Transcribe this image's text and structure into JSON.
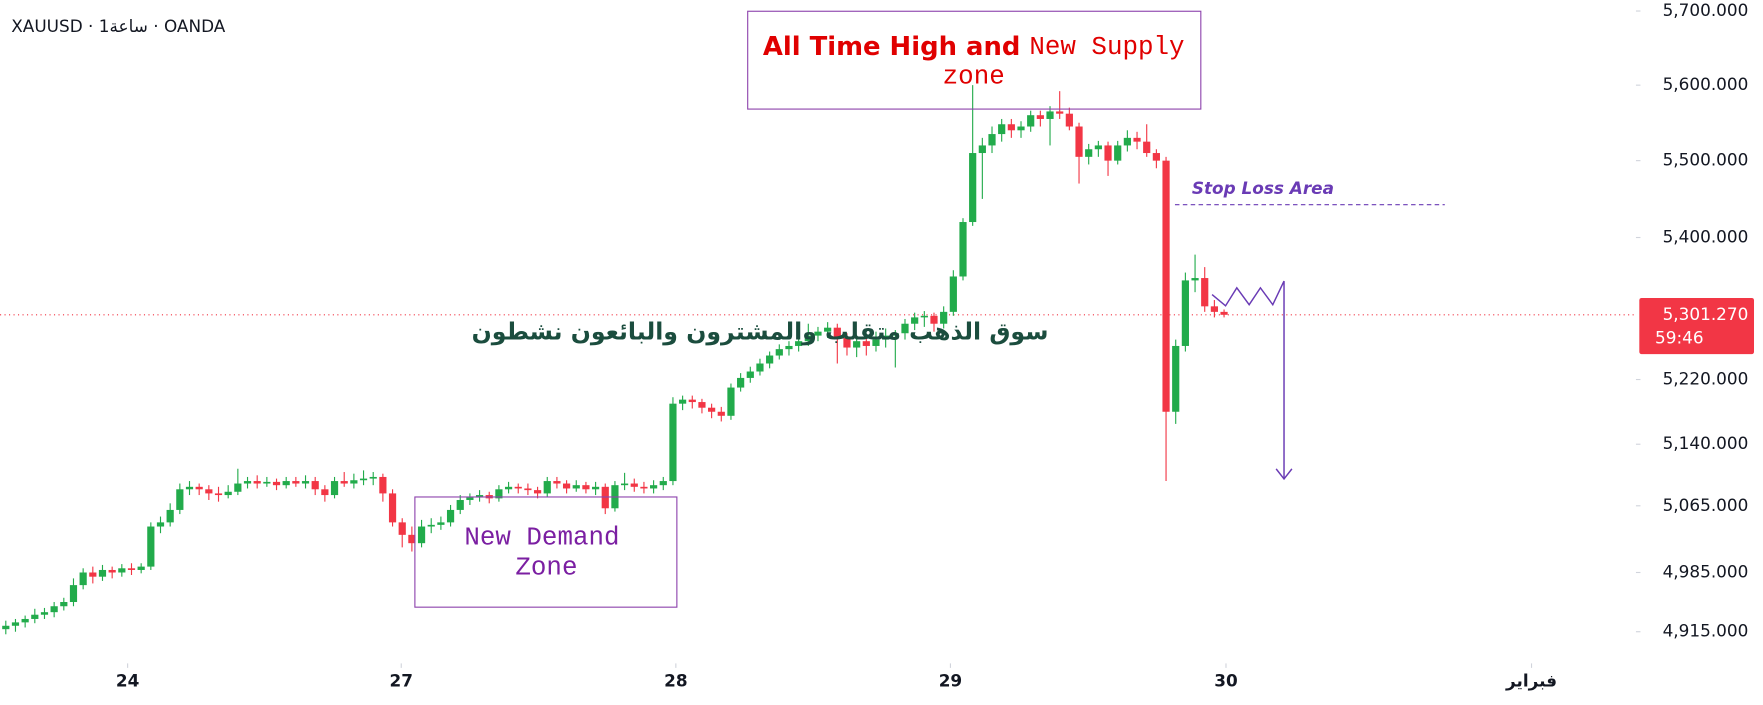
{
  "chart_data": {
    "type": "candlestick",
    "title": "XAUUSD · 1ساعة · OANDA",
    "log_scale": true,
    "up_color": "#22ab4b",
    "down_color": "#f23645",
    "ylim": [
      4878,
      5715
    ],
    "yticks": [
      {
        "value": 5700,
        "label": "5,700.000"
      },
      {
        "value": 5600,
        "label": "5,600.000"
      },
      {
        "value": 5500,
        "label": "5,500.000"
      },
      {
        "value": 5400,
        "label": "5,400.000"
      },
      {
        "value": 5220,
        "label": "5,220.000"
      },
      {
        "value": 5140,
        "label": "5,140.000"
      },
      {
        "value": 5065,
        "label": "5,065.000"
      },
      {
        "value": 4985,
        "label": "4,985.000"
      },
      {
        "value": 4915,
        "label": "4,915.000"
      }
    ],
    "xlim": [
      -0.6,
      168.6
    ],
    "xticks": [
      {
        "value": 12.6,
        "label": "24"
      },
      {
        "value": 40.9,
        "label": "27"
      },
      {
        "value": 69.3,
        "label": "28"
      },
      {
        "value": 97.7,
        "label": "29"
      },
      {
        "value": 126.2,
        "label": "30"
      },
      {
        "value": 157.8,
        "label": "فبراير"
      }
    ],
    "last_price": {
      "value": 5301.27,
      "label": "5,301.270"
    },
    "countdown": "59:46",
    "annotations": {
      "supply": [
        "All Time High and",
        "New Supply",
        "zone"
      ],
      "demand": [
        "New Demand",
        "Zone"
      ],
      "note": "سوق الذهب متقلب والمشترون والبائعون نشطون",
      "stop_loss": "Stop Loss Area"
    },
    "ohlc": [
      [
        4918,
        4928,
        4912,
        4922
      ],
      [
        4922,
        4930,
        4915,
        4926
      ],
      [
        4926,
        4934,
        4920,
        4930
      ],
      [
        4930,
        4942,
        4925,
        4935
      ],
      [
        4935,
        4943,
        4930,
        4938
      ],
      [
        4938,
        4950,
        4932,
        4945
      ],
      [
        4945,
        4955,
        4940,
        4950
      ],
      [
        4950,
        4978,
        4945,
        4970
      ],
      [
        4970,
        4990,
        4965,
        4985
      ],
      [
        4985,
        4992,
        4972,
        4980
      ],
      [
        4980,
        4994,
        4975,
        4988
      ],
      [
        4988,
        4992,
        4978,
        4985
      ],
      [
        4985,
        4995,
        4980,
        4990
      ],
      [
        4990,
        4996,
        4982,
        4988
      ],
      [
        4988,
        4996,
        4984,
        4992
      ],
      [
        4992,
        5045,
        4988,
        5040
      ],
      [
        5040,
        5052,
        5032,
        5045
      ],
      [
        5045,
        5068,
        5040,
        5060
      ],
      [
        5060,
        5092,
        5055,
        5085
      ],
      [
        5085,
        5095,
        5078,
        5088
      ],
      [
        5088,
        5092,
        5078,
        5085
      ],
      [
        5085,
        5090,
        5072,
        5080
      ],
      [
        5080,
        5088,
        5070,
        5078
      ],
      [
        5078,
        5090,
        5074,
        5082
      ],
      [
        5082,
        5110,
        5078,
        5092
      ],
      [
        5092,
        5100,
        5086,
        5095
      ],
      [
        5095,
        5102,
        5086,
        5092
      ],
      [
        5092,
        5100,
        5088,
        5094
      ],
      [
        5094,
        5098,
        5084,
        5090
      ],
      [
        5090,
        5100,
        5086,
        5095
      ],
      [
        5095,
        5100,
        5088,
        5092
      ],
      [
        5092,
        5102,
        5086,
        5095
      ],
      [
        5095,
        5100,
        5078,
        5085
      ],
      [
        5085,
        5090,
        5070,
        5078
      ],
      [
        5078,
        5100,
        5074,
        5095
      ],
      [
        5095,
        5106,
        5088,
        5092
      ],
      [
        5092,
        5104,
        5086,
        5096
      ],
      [
        5096,
        5108,
        5090,
        5098
      ],
      [
        5098,
        5106,
        5090,
        5100
      ],
      [
        5100,
        5104,
        5070,
        5080
      ],
      [
        5080,
        5085,
        5040,
        5045
      ],
      [
        5045,
        5050,
        5015,
        5030
      ],
      [
        5030,
        5040,
        5010,
        5020
      ],
      [
        5020,
        5048,
        5015,
        5040
      ],
      [
        5040,
        5050,
        5032,
        5042
      ],
      [
        5042,
        5052,
        5036,
        5045
      ],
      [
        5045,
        5066,
        5040,
        5060
      ],
      [
        5060,
        5078,
        5055,
        5072
      ],
      [
        5072,
        5080,
        5066,
        5075
      ],
      [
        5075,
        5084,
        5070,
        5078
      ],
      [
        5078,
        5082,
        5068,
        5074
      ],
      [
        5074,
        5090,
        5070,
        5085
      ],
      [
        5085,
        5094,
        5080,
        5088
      ],
      [
        5088,
        5092,
        5080,
        5086
      ],
      [
        5086,
        5092,
        5078,
        5084
      ],
      [
        5084,
        5088,
        5074,
        5080
      ],
      [
        5080,
        5100,
        5076,
        5095
      ],
      [
        5095,
        5100,
        5086,
        5092
      ],
      [
        5092,
        5096,
        5080,
        5086
      ],
      [
        5086,
        5096,
        5082,
        5090
      ],
      [
        5090,
        5094,
        5080,
        5085
      ],
      [
        5085,
        5094,
        5078,
        5088
      ],
      [
        5088,
        5092,
        5055,
        5062
      ],
      [
        5062,
        5095,
        5058,
        5090
      ],
      [
        5090,
        5105,
        5084,
        5092
      ],
      [
        5092,
        5098,
        5082,
        5088
      ],
      [
        5088,
        5094,
        5080,
        5086
      ],
      [
        5086,
        5096,
        5080,
        5090
      ],
      [
        5090,
        5100,
        5084,
        5095
      ],
      [
        5095,
        5198,
        5090,
        5190
      ],
      [
        5190,
        5200,
        5182,
        5195
      ],
      [
        5195,
        5200,
        5184,
        5192
      ],
      [
        5192,
        5196,
        5178,
        5185
      ],
      [
        5185,
        5190,
        5172,
        5180
      ],
      [
        5180,
        5186,
        5168,
        5175
      ],
      [
        5175,
        5215,
        5170,
        5210
      ],
      [
        5210,
        5228,
        5205,
        5222
      ],
      [
        5222,
        5236,
        5216,
        5230
      ],
      [
        5230,
        5246,
        5225,
        5240
      ],
      [
        5240,
        5255,
        5234,
        5250
      ],
      [
        5250,
        5264,
        5245,
        5258
      ],
      [
        5258,
        5268,
        5250,
        5262
      ],
      [
        5262,
        5274,
        5255,
        5268
      ],
      [
        5268,
        5290,
        5262,
        5275
      ],
      [
        5275,
        5286,
        5268,
        5280
      ],
      [
        5280,
        5292,
        5272,
        5285
      ],
      [
        5285,
        5290,
        5240,
        5272
      ],
      [
        5272,
        5278,
        5250,
        5260
      ],
      [
        5260,
        5275,
        5248,
        5268
      ],
      [
        5268,
        5272,
        5250,
        5262
      ],
      [
        5262,
        5280,
        5255,
        5270
      ],
      [
        5270,
        5284,
        5260,
        5275
      ],
      [
        5275,
        5282,
        5235,
        5278
      ],
      [
        5278,
        5296,
        5270,
        5290
      ],
      [
        5290,
        5304,
        5282,
        5298
      ],
      [
        5298,
        5306,
        5286,
        5300
      ],
      [
        5300,
        5304,
        5280,
        5290
      ],
      [
        5290,
        5312,
        5284,
        5305
      ],
      [
        5305,
        5358,
        5300,
        5350
      ],
      [
        5350,
        5425,
        5345,
        5420
      ],
      [
        5420,
        5600,
        5415,
        5510
      ],
      [
        5510,
        5530,
        5450,
        5520
      ],
      [
        5520,
        5545,
        5510,
        5535
      ],
      [
        5535,
        5555,
        5525,
        5548
      ],
      [
        5548,
        5555,
        5530,
        5540
      ],
      [
        5540,
        5552,
        5530,
        5545
      ],
      [
        5545,
        5566,
        5538,
        5560
      ],
      [
        5560,
        5566,
        5545,
        5555
      ],
      [
        5555,
        5572,
        5520,
        5565
      ],
      [
        5565,
        5592,
        5555,
        5562
      ],
      [
        5562,
        5570,
        5540,
        5545
      ],
      [
        5545,
        5550,
        5470,
        5505
      ],
      [
        5505,
        5522,
        5495,
        5515
      ],
      [
        5515,
        5526,
        5505,
        5520
      ],
      [
        5520,
        5525,
        5480,
        5500
      ],
      [
        5500,
        5526,
        5495,
        5520
      ],
      [
        5520,
        5540,
        5512,
        5530
      ],
      [
        5530,
        5538,
        5515,
        5525
      ],
      [
        5525,
        5548,
        5505,
        5510
      ],
      [
        5510,
        5515,
        5490,
        5500
      ],
      [
        5500,
        5505,
        5095,
        5180
      ],
      [
        5180,
        5270,
        5165,
        5262
      ],
      [
        5262,
        5355,
        5255,
        5345
      ],
      [
        5345,
        5378,
        5330,
        5348
      ],
      [
        5348,
        5362,
        5305,
        5312
      ],
      [
        5312,
        5320,
        5298,
        5305
      ],
      [
        5305,
        5308,
        5298,
        5301.27
      ]
    ]
  }
}
